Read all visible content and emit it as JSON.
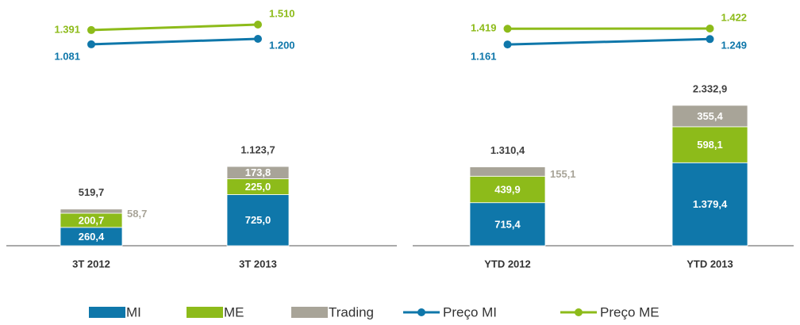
{
  "chart_data": [
    {
      "type": "bar",
      "categories": [
        "3T 2012",
        "3T 2013"
      ],
      "series": [
        {
          "name": "MI",
          "color": "#0f77aa",
          "values": [
            260.4,
            725.0
          ],
          "value_labels": [
            "260,4",
            "725,0"
          ]
        },
        {
          "name": "ME",
          "color": "#8dbb1a",
          "values": [
            200.7,
            225.0
          ],
          "value_labels": [
            "200,7",
            "225,0"
          ]
        },
        {
          "name": "Trading",
          "color": "#a8a498",
          "values": [
            58.7,
            173.8
          ],
          "value_labels": [
            "58,7",
            "173,8"
          ]
        },
        {
          "name": "Preço MI",
          "type": "line",
          "axis": "y2",
          "color": "#0f77aa",
          "values": [
            1081,
            1200
          ],
          "value_labels": [
            "1.081",
            "1.200"
          ]
        },
        {
          "name": "Preço ME",
          "type": "line",
          "axis": "y2",
          "color": "#8dbb1a",
          "values": [
            1391,
            1510
          ],
          "value_labels": [
            "1.391",
            "1.510"
          ]
        }
      ],
      "totals": [
        519.7,
        1123.7
      ],
      "total_labels": [
        "519,7",
        "1.123,7"
      ],
      "ylim": [
        0,
        3260
      ],
      "y2lim": [
        -3300,
        1700
      ]
    },
    {
      "type": "bar",
      "categories": [
        "YTD 2012",
        "YTD 2013"
      ],
      "series": [
        {
          "color": "#0f77aa",
          "values": [
            715.4,
            1379.4
          ],
          "value_labels": [
            "715,4",
            "1.379,4"
          ]
        },
        {
          "color": "#8dbb1a",
          "values": [
            439.9,
            598.1
          ],
          "value_labels": [
            "439,9",
            "598,1"
          ]
        },
        {
          "color": "#a8a498",
          "values": [
            155.1,
            355.4
          ],
          "value_labels": [
            "155,1",
            "355,4"
          ]
        },
        {
          "type": "line",
          "axis": "y2",
          "color": "#0f77aa",
          "values": [
            1161,
            1249
          ],
          "value_labels": [
            "1.161",
            "1.249"
          ]
        },
        {
          "type": "line",
          "axis": "y2",
          "color": "#8dbb1a",
          "values": [
            1419,
            1422
          ],
          "value_labels": [
            "1.419",
            "1.422"
          ]
        }
      ],
      "totals": [
        1310.4,
        2332.9
      ],
      "total_labels": [
        "1.310,4",
        "2.332,9"
      ],
      "ylim": [
        0,
        3820
      ],
      "y2lim": [
        -2140,
        1630
      ]
    }
  ]
}
